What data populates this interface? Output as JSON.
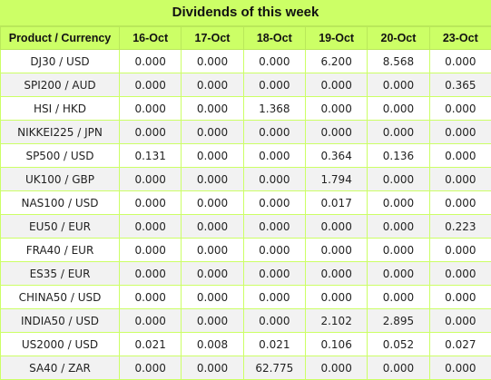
{
  "title": "Dividends of this week",
  "columns": [
    "Product / Currency",
    "16-Oct",
    "17-Oct",
    "18-Oct",
    "19-Oct",
    "20-Oct",
    "23-Oct"
  ],
  "rows": [
    [
      "DJ30 / USD",
      "0.000",
      "0.000",
      "0.000",
      "6.200",
      "8.568",
      "0.000"
    ],
    [
      "SPI200 / AUD",
      "0.000",
      "0.000",
      "0.000",
      "0.000",
      "0.000",
      "0.365"
    ],
    [
      "HSI / HKD",
      "0.000",
      "0.000",
      "1.368",
      "0.000",
      "0.000",
      "0.000"
    ],
    [
      "NIKKEI225 / JPN",
      "0.000",
      "0.000",
      "0.000",
      "0.000",
      "0.000",
      "0.000"
    ],
    [
      "SP500 / USD",
      "0.131",
      "0.000",
      "0.000",
      "0.364",
      "0.136",
      "0.000"
    ],
    [
      "UK100 / GBP",
      "0.000",
      "0.000",
      "0.000",
      "1.794",
      "0.000",
      "0.000"
    ],
    [
      "NAS100 / USD",
      "0.000",
      "0.000",
      "0.000",
      "0.017",
      "0.000",
      "0.000"
    ],
    [
      "EU50 / EUR",
      "0.000",
      "0.000",
      "0.000",
      "0.000",
      "0.000",
      "0.223"
    ],
    [
      "FRA40 / EUR",
      "0.000",
      "0.000",
      "0.000",
      "0.000",
      "0.000",
      "0.000"
    ],
    [
      "ES35 / EUR",
      "0.000",
      "0.000",
      "0.000",
      "0.000",
      "0.000",
      "0.000"
    ],
    [
      "CHINA50 / USD",
      "0.000",
      "0.000",
      "0.000",
      "0.000",
      "0.000",
      "0.000"
    ],
    [
      "INDIA50 / USD",
      "0.000",
      "0.000",
      "0.000",
      "2.102",
      "2.895",
      "0.000"
    ],
    [
      "US2000 / USD",
      "0.021",
      "0.008",
      "0.021",
      "0.106",
      "0.052",
      "0.027"
    ],
    [
      "SA40 / ZAR",
      "0.000",
      "0.000",
      "62.775",
      "0.000",
      "0.000",
      "0.000"
    ]
  ]
}
